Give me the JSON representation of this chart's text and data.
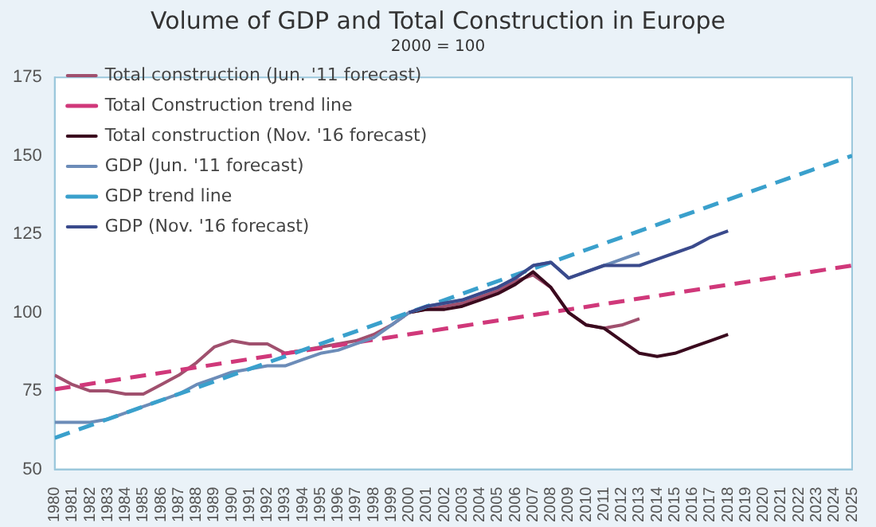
{
  "chart_data": {
    "type": "line",
    "title": "Volume of GDP and Total Construction in Europe",
    "subtitle": "2000 = 100",
    "xlim": [
      1980,
      2025
    ],
    "xticks": [
      1980,
      1981,
      1982,
      1983,
      1984,
      1985,
      1986,
      1987,
      1988,
      1989,
      1990,
      1991,
      1992,
      1993,
      1994,
      1995,
      1996,
      1997,
      1998,
      1999,
      2000,
      2001,
      2002,
      2003,
      2004,
      2005,
      2006,
      2007,
      2008,
      2009,
      2010,
      2011,
      2012,
      2013,
      2014,
      2015,
      2016,
      2017,
      2018,
      2019,
      2020,
      2021,
      2022,
      2023,
      2024,
      2025
    ],
    "ylim": [
      50,
      175
    ],
    "yticks": [
      50,
      75,
      100,
      125,
      150,
      175
    ],
    "grid": false,
    "legend": "top left",
    "marker": "none",
    "series": [
      {
        "name": "Total construction (Jun. '11 forecast)",
        "color": "#a0506e",
        "line_style": "solid",
        "x": [
          1980,
          1981,
          1982,
          1983,
          1984,
          1985,
          1986,
          1987,
          1988,
          1989,
          1990,
          1991,
          1992,
          1993,
          1994,
          1995,
          1996,
          1997,
          1998,
          1999,
          2000,
          2001,
          2002,
          2003,
          2004,
          2005,
          2006,
          2007,
          2008,
          2009,
          2010,
          2011,
          2012,
          2013
        ],
        "values": [
          80,
          77,
          75,
          75,
          74,
          74,
          77,
          80,
          84,
          89,
          91,
          90,
          90,
          87,
          88,
          89,
          90,
          91,
          93,
          96,
          100,
          101,
          102,
          103,
          105,
          107,
          110,
          112,
          108,
          100,
          96,
          95,
          96,
          98
        ]
      },
      {
        "name": "Total Construction trend line",
        "color": "#d0387a",
        "line_style": "dashed",
        "x": [
          1980,
          2025
        ],
        "values": [
          75.5,
          115
        ]
      },
      {
        "name": "Total construction (Nov. '16 forecast)",
        "color": "#3a0a1e",
        "line_style": "solid",
        "x": [
          2000,
          2001,
          2002,
          2003,
          2004,
          2005,
          2006,
          2007,
          2008,
          2009,
          2010,
          2011,
          2012,
          2013,
          2014,
          2015,
          2016,
          2017,
          2018
        ],
        "values": [
          100,
          101,
          101,
          102,
          104,
          106,
          109,
          113,
          108,
          100,
          96,
          95,
          91,
          87,
          86,
          87,
          89,
          91,
          93
        ]
      },
      {
        "name": "GDP (Jun. '11 forecast)",
        "color": "#6c8cb8",
        "line_style": "solid",
        "x": [
          1980,
          1981,
          1982,
          1983,
          1984,
          1985,
          1986,
          1987,
          1988,
          1989,
          1990,
          1991,
          1992,
          1993,
          1994,
          1995,
          1996,
          1997,
          1998,
          1999,
          2000,
          2001,
          2002,
          2003,
          2004,
          2005,
          2006,
          2007,
          2008,
          2009,
          2010,
          2011,
          2012,
          2013
        ],
        "values": [
          65,
          65,
          65,
          66,
          68,
          70,
          72,
          74,
          77,
          79,
          81,
          82,
          83,
          83,
          85,
          87,
          88,
          90,
          92,
          96,
          100,
          102,
          103,
          104,
          106,
          108,
          111,
          115,
          116,
          111,
          113,
          115,
          117,
          119
        ]
      },
      {
        "name": "GDP trend line",
        "color": "#3aa0cc",
        "line_style": "dashed",
        "x": [
          1980,
          2025
        ],
        "values": [
          60,
          150
        ]
      },
      {
        "name": "GDP (Nov. '16 forecast)",
        "color": "#3a4a8c",
        "line_style": "solid",
        "x": [
          2000,
          2001,
          2002,
          2003,
          2004,
          2005,
          2006,
          2007,
          2008,
          2009,
          2010,
          2011,
          2012,
          2013,
          2014,
          2015,
          2016,
          2017,
          2018
        ],
        "values": [
          100,
          102,
          103,
          104,
          106,
          108,
          111,
          115,
          116,
          111,
          113,
          115,
          115,
          115,
          117,
          119,
          121,
          124,
          126
        ]
      }
    ]
  }
}
